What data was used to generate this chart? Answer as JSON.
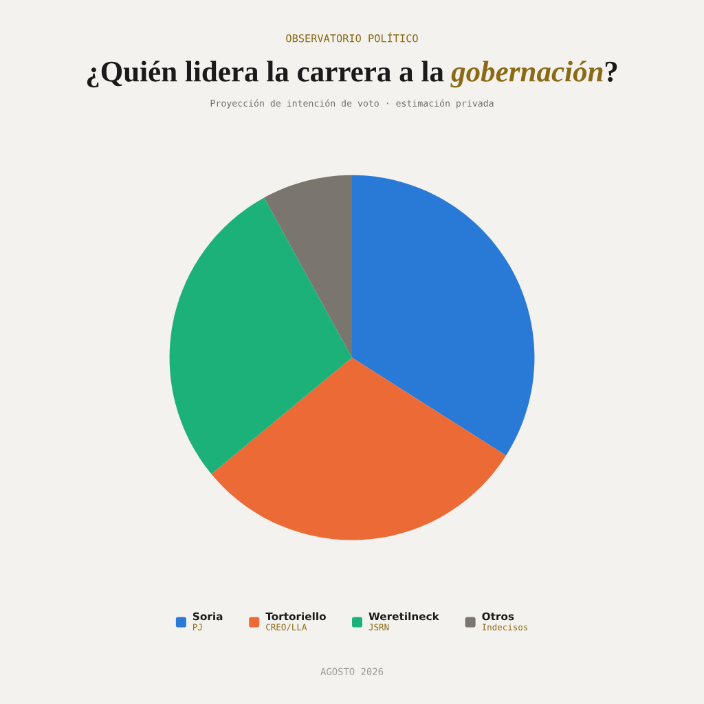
{
  "chart_data": {
    "type": "pie",
    "title": "¿Quién lidera la carrera a la gobernación?",
    "subtitle": "Proyección de intención de voto · estimación privada",
    "annotations": [
      "OBSERVATORIO POLÍTICO",
      "AGOSTO 2026"
    ],
    "categories": [
      "Soria\nPJ",
      "Tortoriello\nCREO/LLA",
      "Weretilneck\nJSRN",
      "Otros\nIndecisos"
    ],
    "values": [
      34,
      30,
      28,
      8
    ],
    "colors": [
      "#2979d6",
      "#ec6a35",
      "#1db17a",
      "#7a766e"
    ],
    "legend": "bottom"
  }
}
